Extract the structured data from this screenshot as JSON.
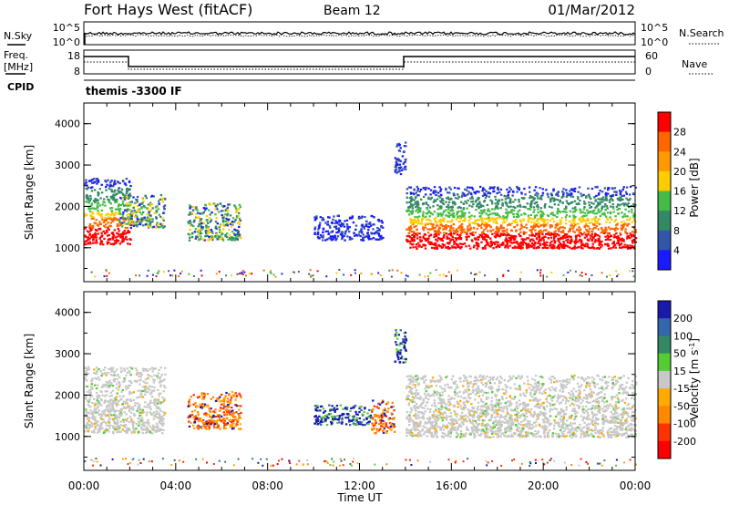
{
  "header": {
    "station": "Fort Hays West (fitACF)",
    "beam": "Beam 12",
    "date": "01/Mar/2012"
  },
  "time_axis": {
    "label": "Time UT",
    "ticks": [
      "00:00",
      "04:00",
      "08:00",
      "12:00",
      "16:00",
      "20:00",
      "00:00"
    ]
  },
  "noise_panel": {
    "left_label": "N.Sky",
    "right_label": "N.Search",
    "left_ticks": [
      "10^5",
      "10^0"
    ],
    "right_ticks": [
      "10^5",
      "10^0"
    ]
  },
  "freq_panel": {
    "left_label_1": "Freq.",
    "left_label_2": "[MHz]",
    "right_label": "Nave",
    "left_ticks": [
      "18",
      "8"
    ],
    "right_ticks": [
      "60",
      "0"
    ],
    "cpid_label": "CPID",
    "cpid_value": "themis -3300 IF"
  },
  "chart_data": [
    {
      "type": "heatmap",
      "title": "",
      "xlabel": "",
      "ylabel": "Slant Range [km]",
      "xlim": [
        0,
        24
      ],
      "ylim": [
        180,
        4500
      ],
      "y_ticks": [
        "1000",
        "2000",
        "3000",
        "4000"
      ],
      "colorbar": {
        "label": "Power [dB]",
        "ticks": [
          "4",
          "8",
          "12",
          "16",
          "20",
          "24",
          "28"
        ],
        "colors": [
          "#1a1aff",
          "#3355aa",
          "#338866",
          "#44bb44",
          "#ffcc00",
          "#ff9900",
          "#ff6600",
          "#ff0000"
        ]
      },
      "regions": [
        {
          "t": [
            0.0,
            2.0
          ],
          "range": [
            1100,
            2700
          ],
          "value": "high"
        },
        {
          "t": [
            1.5,
            3.5
          ],
          "range": [
            1500,
            2300
          ],
          "value": "mid"
        },
        {
          "t": [
            4.5,
            6.8
          ],
          "range": [
            1200,
            2100
          ],
          "value": "mid"
        },
        {
          "t": [
            10.0,
            13.0
          ],
          "range": [
            1200,
            1800
          ],
          "value": "low"
        },
        {
          "t": [
            13.5,
            14.0
          ],
          "range": [
            2800,
            3600
          ],
          "value": "low"
        },
        {
          "t": [
            14.0,
            24.0
          ],
          "range": [
            1000,
            2500
          ],
          "value": "high"
        }
      ]
    },
    {
      "type": "heatmap",
      "title": "",
      "xlabel": "Time UT",
      "ylabel": "Slant Range [km]",
      "xlim": [
        0,
        24
      ],
      "ylim": [
        180,
        4500
      ],
      "y_ticks": [
        "1000",
        "2000",
        "3000",
        "4000"
      ],
      "colorbar": {
        "label_1": "Velocity [m s",
        "label_sup": "-1",
        "label_2": "]",
        "ticks": [
          "200",
          "100",
          "50",
          "15",
          "-15",
          "-50",
          "-100",
          "-200"
        ],
        "colors": [
          "#1a1aaa",
          "#3366aa",
          "#338866",
          "#55cc33",
          "#c8c8c8",
          "#ffaa00",
          "#ff8800",
          "#ff3300",
          "#ff0000"
        ]
      },
      "regions": [
        {
          "t": [
            0.0,
            3.5
          ],
          "range": [
            1100,
            2700
          ],
          "value": "ground"
        },
        {
          "t": [
            4.5,
            6.8
          ],
          "range": [
            1200,
            2100
          ],
          "value": "away"
        },
        {
          "t": [
            10.0,
            12.5
          ],
          "range": [
            1300,
            1800
          ],
          "value": "toward"
        },
        {
          "t": [
            12.5,
            13.5
          ],
          "range": [
            1100,
            1900
          ],
          "value": "away"
        },
        {
          "t": [
            13.5,
            14.0
          ],
          "range": [
            2800,
            3600
          ],
          "value": "toward"
        },
        {
          "t": [
            14.0,
            24.0
          ],
          "range": [
            1000,
            2500
          ],
          "value": "ground"
        }
      ]
    }
  ]
}
